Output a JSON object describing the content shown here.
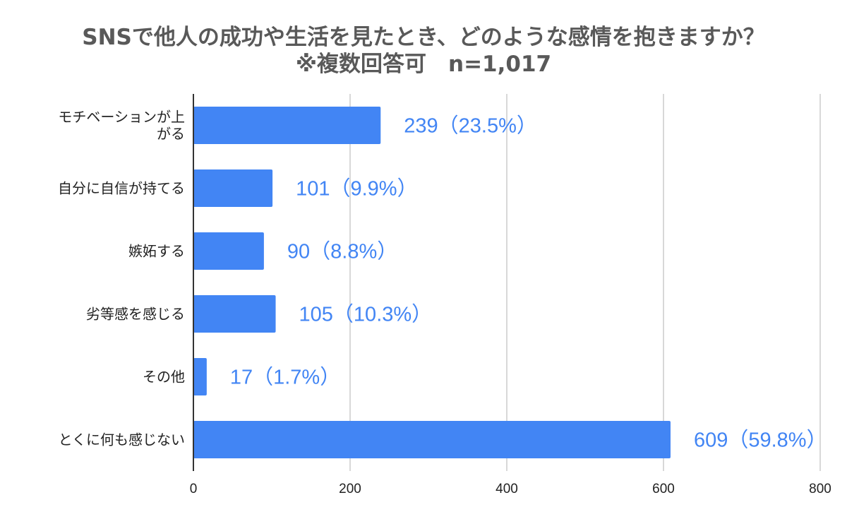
{
  "chart_data": {
    "type": "bar",
    "orientation": "horizontal",
    "title": "SNSで他人の成功や生活を見たとき、どのような感情を抱きますか？",
    "subtitle": "※複数回答可　n=1,017",
    "categories": [
      [
        "モチベーションが上",
        "がる"
      ],
      [
        "自分に自信が持てる"
      ],
      [
        "嫉妬する"
      ],
      [
        "劣等感を感じる"
      ],
      [
        "その他"
      ],
      [
        "とくに何も感じない"
      ]
    ],
    "values": [
      239,
      101,
      90,
      105,
      17,
      609
    ],
    "data_labels": [
      "239（23.5%）",
      "101（9.9%）",
      "90（8.8%）",
      "105（10.3%）",
      "17（1.7%）",
      "609（59.8%）"
    ],
    "xticks": [
      "0",
      "200",
      "400",
      "600",
      "800"
    ],
    "xlim": [
      0,
      800
    ],
    "grid": true,
    "legend": "none",
    "colors": {
      "bar": "#4285F4",
      "label": "#4285F4",
      "grid": "#cccccc",
      "axis": "#333333"
    }
  }
}
